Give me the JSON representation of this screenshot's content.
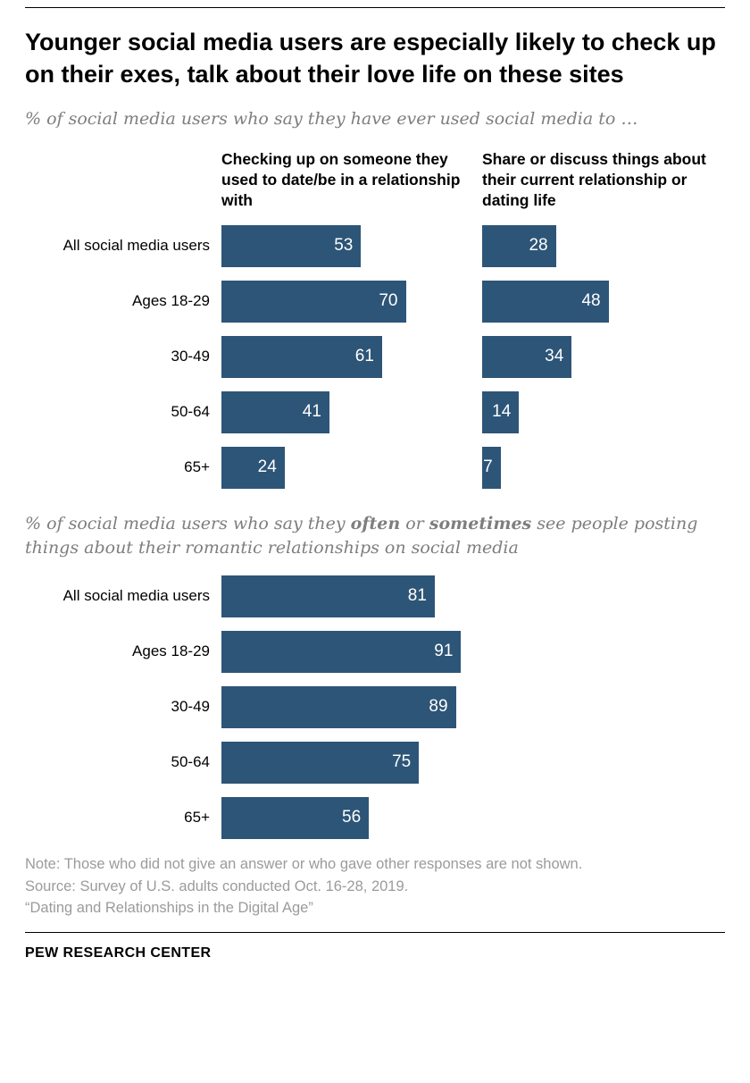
{
  "title": "Younger social media users are especially likely to check up on their exes, talk about their love life on these sites",
  "style": {
    "bar_color": "#2d5577",
    "subtitle_color": "#7e7e7e",
    "note_color": "#9b9b9b"
  },
  "chart_data": [
    {
      "type": "bar",
      "title": "% of social media users who say they have ever used social media to …",
      "categories": [
        "All social media users",
        "Ages 18-29",
        "30-49",
        "50-64",
        "65+"
      ],
      "series": [
        {
          "name": "Checking up on someone they used to date/be in a relationship with",
          "values": [
            53,
            70,
            61,
            41,
            24
          ]
        },
        {
          "name": "Share or discuss things about their current relationship or dating life",
          "values": [
            28,
            48,
            34,
            14,
            7
          ]
        }
      ],
      "xlim": [
        0,
        100
      ],
      "value_labels": "inside-right, white",
      "legend_position": "column headers above bars",
      "grid": false
    },
    {
      "type": "bar",
      "title": "% of social media users who say they often or sometimes see people posting things about their romantic relationships on social media",
      "title_segments": {
        "pre": "% of social media users who say they ",
        "bold1": "often",
        "mid": " or ",
        "bold2": "sometimes",
        "post": " see people posting things about their romantic relationships on social media"
      },
      "categories": [
        "All social media users",
        "Ages 18-29",
        "30-49",
        "50-64",
        "65+"
      ],
      "values": [
        81,
        91,
        89,
        75,
        56
      ],
      "xlim": [
        0,
        100
      ],
      "value_labels": "inside-right, white",
      "grid": false
    }
  ],
  "footer": {
    "note": "Note: Those who did not give an answer or who gave other responses are not shown.",
    "source": "Source: Survey of U.S. adults conducted Oct. 16-28, 2019.",
    "report": "“Dating and Relationships in the Digital Age”",
    "brand": "PEW RESEARCH CENTER"
  }
}
